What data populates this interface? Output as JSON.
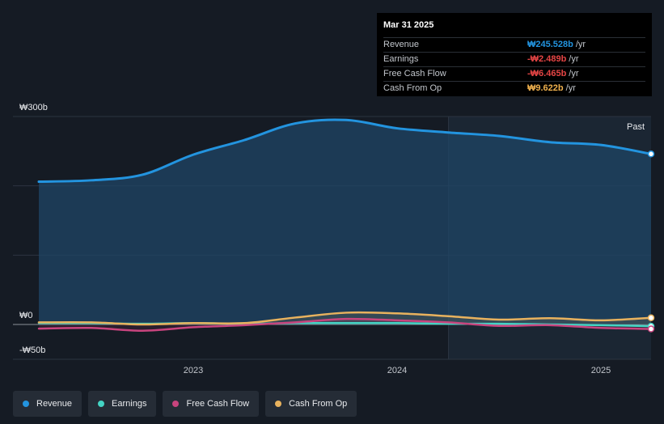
{
  "tooltip": {
    "date": "Mar 31 2025",
    "rows": [
      {
        "label": "Revenue",
        "value": "₩245.528b",
        "unit": "/yr",
        "color": "#2394df"
      },
      {
        "label": "Earnings",
        "value": "-₩2.489b",
        "unit": "/yr",
        "color": "#e64545"
      },
      {
        "label": "Free Cash Flow",
        "value": "-₩6.465b",
        "unit": "/yr",
        "color": "#e64545"
      },
      {
        "label": "Cash From Op",
        "value": "₩9.622b",
        "unit": "/yr",
        "color": "#f0b14e"
      }
    ]
  },
  "legend": [
    {
      "label": "Revenue",
      "color": "#2394df"
    },
    {
      "label": "Earnings",
      "color": "#44d4c4"
    },
    {
      "label": "Free Cash Flow",
      "color": "#c8447e"
    },
    {
      "label": "Cash From Op",
      "color": "#e8b25e"
    }
  ],
  "chart_data": {
    "type": "line",
    "title": "",
    "xlabel": "",
    "ylabel": "",
    "ylim": [
      -50,
      300
    ],
    "y_tick_labels": [
      "₩300b",
      "₩0",
      "-₩50b"
    ],
    "y_ticks": [
      300,
      0,
      -50
    ],
    "x_tick_labels": [
      "2023",
      "2024",
      "2025"
    ],
    "x_ticks": [
      2023.0,
      2024.0,
      2025.0
    ],
    "xlim": [
      2022.13,
      2025.25
    ],
    "past_label": "Past",
    "past_start": 2024.25,
    "grid": true,
    "series": [
      {
        "name": "Revenue",
        "color": "#2394df",
        "x": [
          2022.25,
          2022.5,
          2022.75,
          2023.0,
          2023.25,
          2023.5,
          2023.75,
          2024.0,
          2024.25,
          2024.5,
          2024.75,
          2025.0,
          2025.25
        ],
        "y": [
          206,
          208,
          216,
          245,
          266,
          290,
          295,
          283,
          277,
          272,
          263,
          259,
          246
        ]
      },
      {
        "name": "Earnings",
        "color": "#44d4c4",
        "x": [
          2022.25,
          2022.5,
          2022.75,
          2023.0,
          2023.25,
          2023.5,
          2023.75,
          2024.0,
          2024.25,
          2024.5,
          2024.75,
          2025.0,
          2025.25
        ],
        "y": [
          2,
          2,
          1,
          2,
          1,
          2,
          2,
          2,
          1,
          1,
          0,
          -1,
          -2.489
        ]
      },
      {
        "name": "Free Cash Flow",
        "color": "#c8447e",
        "x": [
          2022.25,
          2022.5,
          2022.75,
          2023.0,
          2023.25,
          2023.5,
          2023.75,
          2024.0,
          2024.25,
          2024.5,
          2024.75,
          2025.0,
          2025.25
        ],
        "y": [
          -6,
          -5,
          -9,
          -4,
          -1,
          3,
          8,
          6,
          3,
          -2,
          -1,
          -5,
          -6.465
        ]
      },
      {
        "name": "Cash From Op",
        "color": "#e8b25e",
        "x": [
          2022.25,
          2022.5,
          2022.75,
          2023.0,
          2023.25,
          2023.5,
          2023.75,
          2024.0,
          2024.25,
          2024.5,
          2024.75,
          2025.0,
          2025.25
        ],
        "y": [
          3,
          3,
          0,
          2,
          2,
          10,
          17,
          16,
          12,
          7,
          9,
          6,
          9.622
        ]
      }
    ]
  }
}
